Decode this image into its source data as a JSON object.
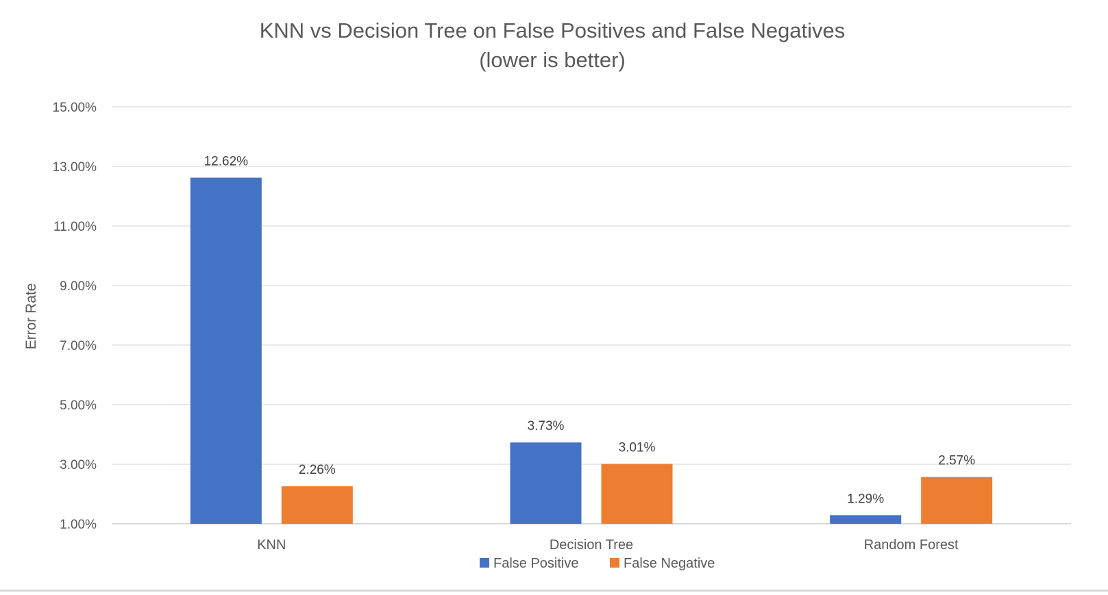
{
  "chart_data": {
    "type": "bar",
    "title": "KNN vs Decision Tree on False Positives and False Negatives",
    "subtitle": "(lower is better)",
    "xlabel": "",
    "ylabel": "Error Rate",
    "categories": [
      "KNN",
      "Decision Tree",
      "Random Forest"
    ],
    "series": [
      {
        "name": "False Positive",
        "color": "#4472C4",
        "values": [
          12.62,
          3.73,
          1.29
        ],
        "labels": [
          "12.62%",
          "3.73%",
          "1.29%"
        ]
      },
      {
        "name": "False Negative",
        "color": "#ED7D31",
        "values": [
          2.26,
          3.01,
          2.57
        ],
        "labels": [
          "2.26%",
          "3.01%",
          "2.57%"
        ]
      }
    ],
    "ylim": [
      1,
      15
    ],
    "yticks": [
      1,
      3,
      5,
      7,
      9,
      11,
      13,
      15
    ],
    "ytick_labels": [
      "1.00%",
      "3.00%",
      "5.00%",
      "7.00%",
      "9.00%",
      "11.00%",
      "13.00%",
      "15.00%"
    ],
    "grid": true,
    "legend_position": "bottom"
  }
}
